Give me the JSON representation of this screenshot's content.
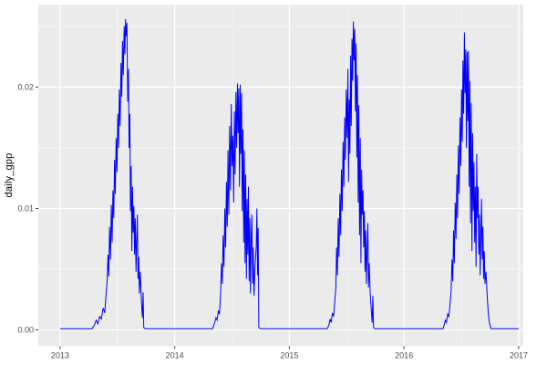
{
  "chart_data": {
    "type": "line",
    "title": "",
    "xlabel": "",
    "ylabel": "daily_gpp",
    "legend_position": "none",
    "grid": true,
    "theme": "ggplot-grey",
    "x_ticks": {
      "values": [
        2013,
        2014,
        2015,
        2016,
        2017
      ],
      "labels": [
        "2013",
        "2014",
        "2015",
        "2016",
        "2017"
      ]
    },
    "y_ticks": {
      "values": [
        0,
        0.01,
        0.02
      ],
      "labels": [
        "0.00",
        "0.01",
        "0.02"
      ]
    },
    "x_minor": [
      2013.5,
      2014.5,
      2015.5,
      2016.5
    ],
    "y_minor": [
      0.005,
      0.015,
      0.025
    ],
    "xlim": [
      2012.81,
      2017.04
    ],
    "ylim": [
      -0.00135,
      0.0268
    ],
    "style": {
      "panel_bg": "#EBEBEB",
      "grid_major": "#FFFFFF",
      "grid_minor": "#F7F7F7",
      "tick_color": "#333333",
      "tick_label_color": "#4D4D4D",
      "axis_title_color": "#000000",
      "figure_bg": "#FFFFFF"
    },
    "series": [
      {
        "name": "daily_gpp",
        "color": "#0000FF",
        "points": [
          [
            2013.0,
            0.0001
          ],
          [
            2013.15,
            0.0001
          ],
          [
            2013.28,
            0.0001
          ],
          [
            2013.3,
            0.0004
          ],
          [
            2013.315,
            0.0008
          ],
          [
            2013.33,
            0.0005
          ],
          [
            2013.345,
            0.0011
          ],
          [
            2013.36,
            0.0009
          ],
          [
            2013.375,
            0.0018
          ],
          [
            2013.39,
            0.0014
          ],
          [
            2013.4,
            0.0028
          ],
          [
            2013.41,
            0.004
          ],
          [
            2013.418,
            0.0062
          ],
          [
            2013.425,
            0.0044
          ],
          [
            2013.432,
            0.0085
          ],
          [
            2013.44,
            0.0058
          ],
          [
            2013.447,
            0.0103
          ],
          [
            2013.454,
            0.0072
          ],
          [
            2013.461,
            0.0115
          ],
          [
            2013.468,
            0.0092
          ],
          [
            2013.475,
            0.014
          ],
          [
            2013.482,
            0.0112
          ],
          [
            2013.489,
            0.0158
          ],
          [
            2013.496,
            0.013
          ],
          [
            2013.503,
            0.0178
          ],
          [
            2013.51,
            0.015
          ],
          [
            2013.517,
            0.0198
          ],
          [
            2013.524,
            0.0168
          ],
          [
            2013.531,
            0.022
          ],
          [
            2013.538,
            0.0192
          ],
          [
            2013.545,
            0.0238
          ],
          [
            2013.552,
            0.021
          ],
          [
            2013.559,
            0.025
          ],
          [
            2013.565,
            0.0227
          ],
          [
            2013.571,
            0.0256
          ],
          [
            2013.577,
            0.0242
          ],
          [
            2013.583,
            0.0253
          ],
          [
            2013.59,
            0.0188
          ],
          [
            2013.596,
            0.0215
          ],
          [
            2013.602,
            0.015
          ],
          [
            2013.608,
            0.0178
          ],
          [
            2013.614,
            0.0098
          ],
          [
            2013.62,
            0.0135
          ],
          [
            2013.626,
            0.0065
          ],
          [
            2013.632,
            0.0118
          ],
          [
            2013.638,
            0.008
          ],
          [
            2013.644,
            0.0102
          ],
          [
            2013.65,
            0.0062
          ],
          [
            2013.656,
            0.0092
          ],
          [
            2013.662,
            0.0048
          ],
          [
            2013.668,
            0.0072
          ],
          [
            2013.674,
            0.0095
          ],
          [
            2013.68,
            0.0042
          ],
          [
            2013.686,
            0.006
          ],
          [
            2013.692,
            0.003
          ],
          [
            2013.7,
            0.0048
          ],
          [
            2013.71,
            0.0022
          ],
          [
            2013.718,
            0.001
          ],
          [
            2013.724,
            0.0031
          ],
          [
            2013.73,
            0.0002
          ],
          [
            2013.74,
            0.0001
          ],
          [
            2013.85,
            0.0001
          ],
          [
            2014.0,
            0.0001
          ],
          [
            2014.18,
            0.0001
          ],
          [
            2014.33,
            0.0001
          ],
          [
            2014.345,
            0.0005
          ],
          [
            2014.36,
            0.001
          ],
          [
            2014.37,
            0.0008
          ],
          [
            2014.38,
            0.0016
          ],
          [
            2014.39,
            0.0013
          ],
          [
            2014.4,
            0.003
          ],
          [
            2014.408,
            0.0055
          ],
          [
            2014.415,
            0.0038
          ],
          [
            2014.422,
            0.0078
          ],
          [
            2014.43,
            0.0052
          ],
          [
            2014.437,
            0.01
          ],
          [
            2014.444,
            0.0068
          ],
          [
            2014.451,
            0.0122
          ],
          [
            2014.458,
            0.0085
          ],
          [
            2014.465,
            0.0148
          ],
          [
            2014.472,
            0.0095
          ],
          [
            2014.479,
            0.0168
          ],
          [
            2014.486,
            0.0115
          ],
          [
            2014.493,
            0.0186
          ],
          [
            2014.5,
            0.0135
          ],
          [
            2014.507,
            0.016
          ],
          [
            2014.514,
            0.0105
          ],
          [
            2014.52,
            0.018
          ],
          [
            2014.527,
            0.0128
          ],
          [
            2014.534,
            0.0196
          ],
          [
            2014.54,
            0.015
          ],
          [
            2014.547,
            0.0203
          ],
          [
            2014.553,
            0.0162
          ],
          [
            2014.559,
            0.0199
          ],
          [
            2014.565,
            0.0118
          ],
          [
            2014.571,
            0.0202
          ],
          [
            2014.577,
            0.0145
          ],
          [
            2014.583,
            0.0195
          ],
          [
            2014.589,
            0.0098
          ],
          [
            2014.595,
            0.0165
          ],
          [
            2014.601,
            0.0072
          ],
          [
            2014.607,
            0.0148
          ],
          [
            2014.613,
            0.0055
          ],
          [
            2014.619,
            0.0128
          ],
          [
            2014.625,
            0.0042
          ],
          [
            2014.631,
            0.0108
          ],
          [
            2014.637,
            0.0062
          ],
          [
            2014.643,
            0.0118
          ],
          [
            2014.649,
            0.004
          ],
          [
            2014.655,
            0.0092
          ],
          [
            2014.661,
            0.003
          ],
          [
            2014.667,
            0.0078
          ],
          [
            2014.673,
            0.0095
          ],
          [
            2014.679,
            0.0038
          ],
          [
            2014.685,
            0.0068
          ],
          [
            2014.691,
            0.0028
          ],
          [
            2014.7,
            0.0052
          ],
          [
            2014.71,
            0.0068
          ],
          [
            2014.717,
            0.01
          ],
          [
            2014.722,
            0.0045
          ],
          [
            2014.728,
            0.0084
          ],
          [
            2014.733,
            0.0002
          ],
          [
            2014.75,
            0.0001
          ],
          [
            2014.87,
            0.0001
          ],
          [
            2015.05,
            0.0001
          ],
          [
            2015.2,
            0.0001
          ],
          [
            2015.33,
            0.0001
          ],
          [
            2015.345,
            0.0004
          ],
          [
            2015.355,
            0.0009
          ],
          [
            2015.365,
            0.0006
          ],
          [
            2015.375,
            0.0014
          ],
          [
            2015.385,
            0.0011
          ],
          [
            2015.395,
            0.0022
          ],
          [
            2015.405,
            0.0035
          ],
          [
            2015.412,
            0.0068
          ],
          [
            2015.419,
            0.0045
          ],
          [
            2015.426,
            0.0092
          ],
          [
            2015.433,
            0.006
          ],
          [
            2015.44,
            0.0112
          ],
          [
            2015.447,
            0.0078
          ],
          [
            2015.454,
            0.0132
          ],
          [
            2015.461,
            0.0098
          ],
          [
            2015.468,
            0.0155
          ],
          [
            2015.475,
            0.0118
          ],
          [
            2015.482,
            0.0175
          ],
          [
            2015.489,
            0.014
          ],
          [
            2015.496,
            0.0198
          ],
          [
            2015.503,
            0.0158
          ],
          [
            2015.51,
            0.0215
          ],
          [
            2015.516,
            0.0122
          ],
          [
            2015.522,
            0.019
          ],
          [
            2015.528,
            0.0145
          ],
          [
            2015.534,
            0.0226
          ],
          [
            2015.54,
            0.0168
          ],
          [
            2015.546,
            0.024
          ],
          [
            2015.552,
            0.0205
          ],
          [
            2015.558,
            0.0254
          ],
          [
            2015.564,
            0.0222
          ],
          [
            2015.57,
            0.0248
          ],
          [
            2015.576,
            0.018
          ],
          [
            2015.582,
            0.0236
          ],
          [
            2015.588,
            0.0142
          ],
          [
            2015.594,
            0.021
          ],
          [
            2015.6,
            0.0105
          ],
          [
            2015.606,
            0.0185
          ],
          [
            2015.612,
            0.0078
          ],
          [
            2015.618,
            0.0158
          ],
          [
            2015.624,
            0.0055
          ],
          [
            2015.63,
            0.0132
          ],
          [
            2015.636,
            0.0095
          ],
          [
            2015.642,
            0.0115
          ],
          [
            2015.648,
            0.0068
          ],
          [
            2015.654,
            0.0098
          ],
          [
            2015.66,
            0.0048
          ],
          [
            2015.666,
            0.0082
          ],
          [
            2015.672,
            0.0038
          ],
          [
            2015.678,
            0.0065
          ],
          [
            2015.684,
            0.0088
          ],
          [
            2015.69,
            0.0035
          ],
          [
            2015.696,
            0.0055
          ],
          [
            2015.705,
            0.003
          ],
          [
            2015.715,
            0.0015
          ],
          [
            2015.722,
            0.0006
          ],
          [
            2015.728,
            0.0028
          ],
          [
            2015.734,
            0.0002
          ],
          [
            2015.745,
            0.0001
          ],
          [
            2015.87,
            0.0001
          ],
          [
            2016.05,
            0.0001
          ],
          [
            2016.2,
            0.0001
          ],
          [
            2016.34,
            0.0001
          ],
          [
            2016.35,
            0.0004
          ],
          [
            2016.36,
            0.0008
          ],
          [
            2016.37,
            0.0006
          ],
          [
            2016.38,
            0.0013
          ],
          [
            2016.39,
            0.0011
          ],
          [
            2016.4,
            0.002
          ],
          [
            2016.41,
            0.0032
          ],
          [
            2016.418,
            0.0058
          ],
          [
            2016.425,
            0.004
          ],
          [
            2016.432,
            0.0082
          ],
          [
            2016.439,
            0.0055
          ],
          [
            2016.446,
            0.0105
          ],
          [
            2016.453,
            0.0075
          ],
          [
            2016.46,
            0.0128
          ],
          [
            2016.467,
            0.0092
          ],
          [
            2016.474,
            0.0152
          ],
          [
            2016.481,
            0.0112
          ],
          [
            2016.488,
            0.0175
          ],
          [
            2016.495,
            0.0135
          ],
          [
            2016.502,
            0.0198
          ],
          [
            2016.508,
            0.0155
          ],
          [
            2016.514,
            0.0222
          ],
          [
            2016.52,
            0.0178
          ],
          [
            2016.526,
            0.0245
          ],
          [
            2016.532,
            0.0195
          ],
          [
            2016.538,
            0.0231
          ],
          [
            2016.544,
            0.015
          ],
          [
            2016.55,
            0.0229
          ],
          [
            2016.556,
            0.0172
          ],
          [
            2016.562,
            0.023
          ],
          [
            2016.568,
            0.0118
          ],
          [
            2016.574,
            0.0205
          ],
          [
            2016.58,
            0.0088
          ],
          [
            2016.586,
            0.0187
          ],
          [
            2016.592,
            0.0065
          ],
          [
            2016.598,
            0.0162
          ],
          [
            2016.604,
            0.0098
          ],
          [
            2016.61,
            0.0138
          ],
          [
            2016.616,
            0.0072
          ],
          [
            2016.622,
            0.0118
          ],
          [
            2016.628,
            0.0052
          ],
          [
            2016.634,
            0.0145
          ],
          [
            2016.64,
            0.0092
          ],
          [
            2016.646,
            0.0118
          ],
          [
            2016.652,
            0.0062
          ],
          [
            2016.658,
            0.0095
          ],
          [
            2016.664,
            0.0045
          ],
          [
            2016.67,
            0.0078
          ],
          [
            2016.676,
            0.0108
          ],
          [
            2016.682,
            0.0058
          ],
          [
            2016.688,
            0.0085
          ],
          [
            2016.694,
            0.0042
          ],
          [
            2016.7,
            0.0065
          ],
          [
            2016.706,
            0.0038
          ],
          [
            2016.715,
            0.0048
          ],
          [
            2016.725,
            0.0028
          ],
          [
            2016.735,
            0.0014
          ],
          [
            2016.745,
            0.0006
          ],
          [
            2016.755,
            0.0002
          ],
          [
            2016.76,
            0.0001
          ],
          [
            2016.85,
            0.0001
          ],
          [
            2016.93,
            0.0001
          ],
          [
            2017.0,
            0.0001
          ]
        ]
      }
    ]
  }
}
